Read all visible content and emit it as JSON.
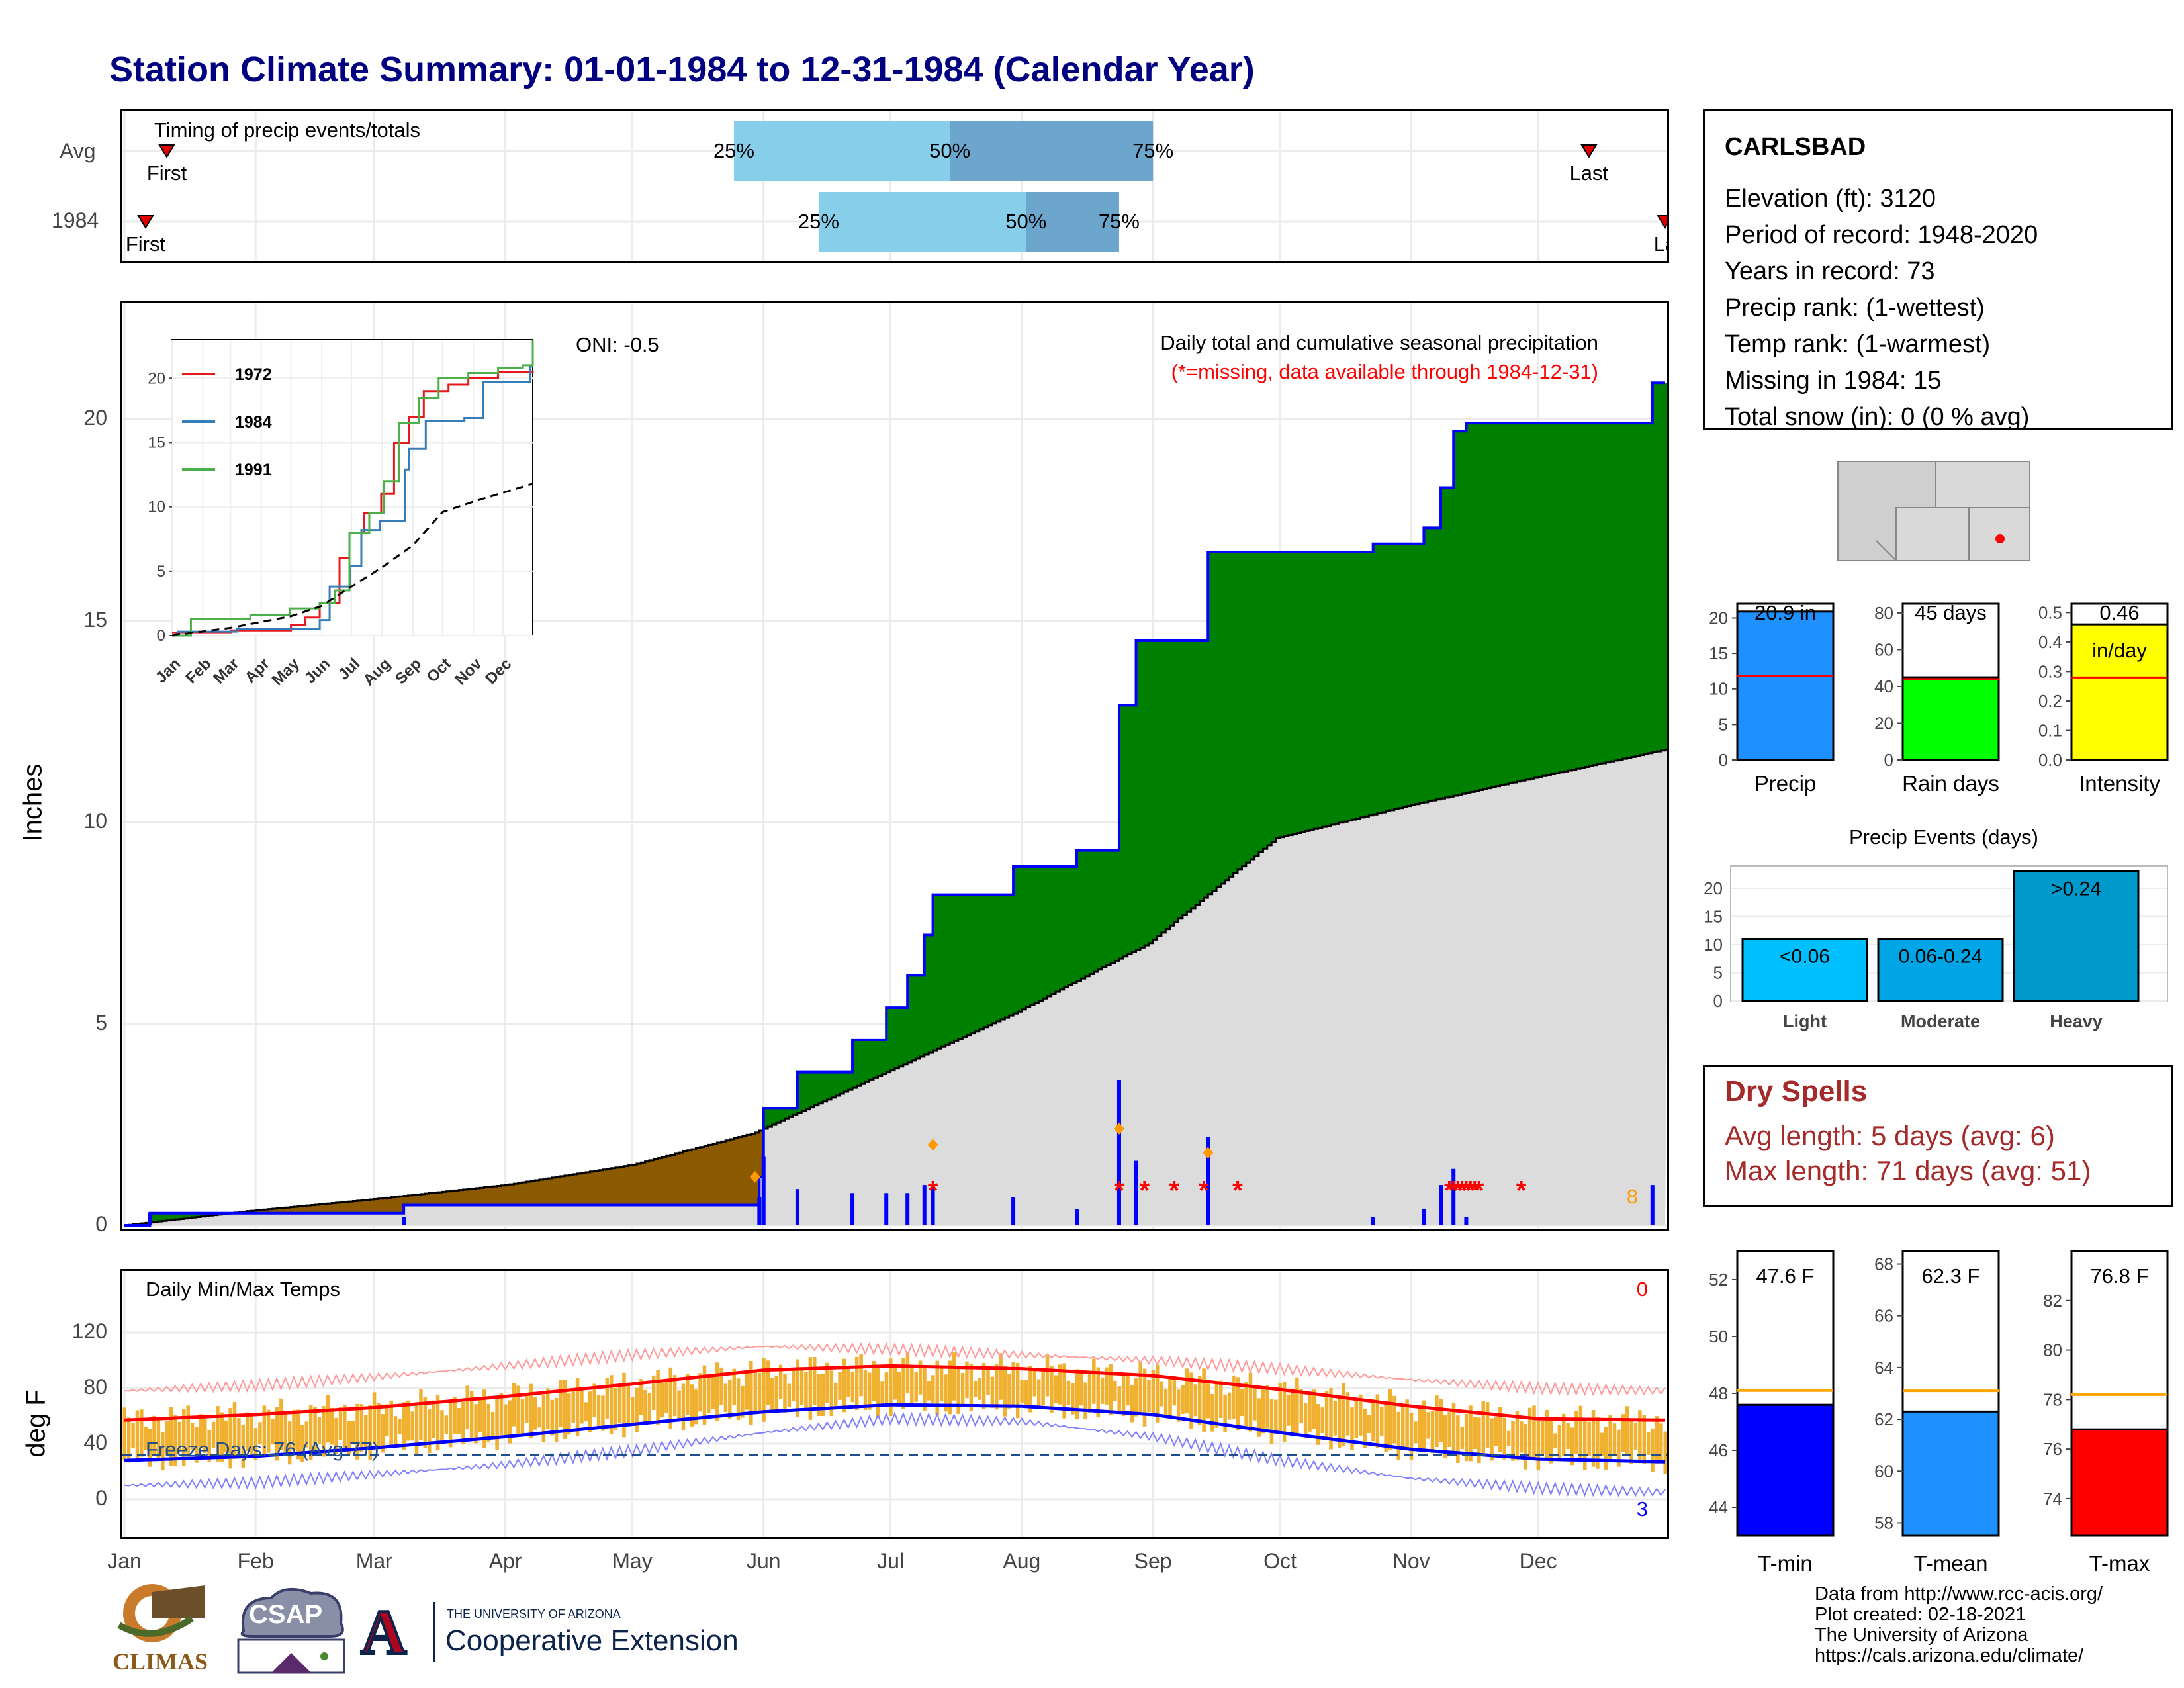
{
  "title": "Station Climate Summary: 01-01-1984 to 12-31-1984 (Calendar Year)",
  "timing": {
    "heading": "Timing of precip events/totals",
    "rows": [
      {
        "label": "Avg",
        "first_label": "First",
        "last_label": "Last",
        "q25_label": "25%",
        "q50_label": "50%",
        "q75_label": "75%",
        "first_day": 11,
        "last_day": 347,
        "q25_day": 145,
        "q50_day": 196,
        "q75_day": 244
      },
      {
        "label": "1984",
        "first_label": "First",
        "last_label": "La",
        "q25_label": "25%",
        "q50_label": "50%",
        "q75_label": "75%",
        "first_day": 6,
        "last_day": 365,
        "q25_day": 165,
        "q50_day": 214,
        "q75_day": 236
      }
    ]
  },
  "station": {
    "name": "CARLSBAD",
    "lines": [
      "Elevation (ft): 3120",
      "Period of record: 1948-2020",
      "Years in record: 73",
      "Precip rank:  (1-wettest)",
      "Temp rank:  (1-warmest)",
      "Missing in 1984: 15",
      "Total snow (in): 0 (0 % avg)"
    ]
  },
  "precip_panel": {
    "ylabel": "Inches",
    "oni": "ONI: -0.5",
    "subtitle": "Daily total and cumulative seasonal precipitation",
    "missing_note": "(*=missing, data available through 1984-12-31)",
    "corner_count": "8",
    "yticks": [
      "0",
      "5",
      "10",
      "15",
      "20"
    ]
  },
  "temp_panel": {
    "ylabel": "deg F",
    "label": "Daily Min/Max Temps",
    "freeze_text": "Freeze Days: 76 (Avg:77)",
    "hot_count": "0",
    "cold_count": "3",
    "yticks": [
      "0",
      "40",
      "80",
      "120"
    ]
  },
  "months": [
    "Jan",
    "Feb",
    "Mar",
    "Apr",
    "May",
    "Jun",
    "Jul",
    "Aug",
    "Sep",
    "Oct",
    "Nov",
    "Dec"
  ],
  "inset": {
    "legend": [
      "1972",
      "1984",
      "1991"
    ],
    "colors": [
      "#e41a1c",
      "#377eb8",
      "#4daf4a"
    ],
    "months": [
      "Jan",
      "Feb",
      "Mar",
      "Apr",
      "May",
      "Jun",
      "Jul",
      "Aug",
      "Sep",
      "Oct",
      "Nov",
      "Dec"
    ],
    "yticks": [
      "0",
      "5",
      "10",
      "15",
      "20"
    ]
  },
  "stat_bars": {
    "precip": {
      "label": "Precip",
      "value_text": "20.9 in",
      "yticks": [
        "0",
        "5",
        "10",
        "15",
        "20"
      ]
    },
    "rain_days": {
      "label": "Rain days",
      "value_text": "45 days",
      "yticks": [
        "0",
        "20",
        "40",
        "60",
        "80"
      ]
    },
    "intensity": {
      "label": "Intensity",
      "value_text": "0.46",
      "unit_text": "in/day",
      "yticks": [
        "0.0",
        "0.1",
        "0.2",
        "0.3",
        "0.4",
        "0.5"
      ]
    }
  },
  "events": {
    "title": "Precip Events (days)",
    "bars": [
      {
        "label": "Light",
        "inner": "<0.06",
        "value": 11
      },
      {
        "label": "Moderate",
        "inner": "0.06-0.24",
        "value": 11
      },
      {
        "label": "Heavy",
        "inner": ">0.24",
        "value": 23
      }
    ],
    "yticks": [
      "0",
      "5",
      "10",
      "15",
      "20"
    ]
  },
  "dry_spells": {
    "title": "Dry Spells",
    "avg_line": "Avg length: 5 days (avg: 6)",
    "max_line": "Max length: 71 days (avg: 51)"
  },
  "temp_bars": {
    "tmin": {
      "label": "T-min",
      "value_text": "47.6 F",
      "yticks": [
        "44",
        "46",
        "48",
        "50",
        "52"
      ]
    },
    "tmean": {
      "label": "T-mean",
      "value_text": "62.3 F",
      "yticks": [
        "58",
        "60",
        "62",
        "64",
        "66",
        "68"
      ]
    },
    "tmax": {
      "label": "T-max",
      "value_text": "76.8 F",
      "yticks": [
        "74",
        "76",
        "78",
        "80",
        "82"
      ]
    }
  },
  "credits": [
    "Data from http://www.rcc-acis.org/",
    "Plot created: 02-18-2021",
    "The University of Arizona",
    "https://cals.arizona.edu/climate/"
  ],
  "logos": {
    "climas": "CLIMAS",
    "csap": "CSAP",
    "ua_small": "THE UNIVERSITY OF ARIZONA",
    "ua_big": "Cooperative Extension",
    "ua_letter": "A"
  },
  "chart_data": [
    {
      "type": "area",
      "title": "Daily total and cumulative seasonal precipitation",
      "ylabel": "Inches",
      "ylim": [
        0,
        22
      ],
      "x_months": [
        "Jan",
        "Feb",
        "Mar",
        "Apr",
        "May",
        "Jun",
        "Jul",
        "Aug",
        "Sep",
        "Oct",
        "Nov",
        "Dec"
      ],
      "series": [
        {
          "name": "1984",
          "points": [
            [
              1,
              0.0
            ],
            [
              7,
              0.3
            ],
            [
              66,
              0.3
            ],
            [
              67,
              0.5
            ],
            [
              150,
              0.5
            ],
            [
              151,
              1.2
            ],
            [
              152,
              2.9
            ],
            [
              159,
              2.9
            ],
            [
              160,
              3.8
            ],
            [
              172,
              3.8
            ],
            [
              173,
              4.6
            ],
            [
              181,
              5.4
            ],
            [
              186,
              6.2
            ],
            [
              190,
              7.2
            ],
            [
              192,
              8.2
            ],
            [
              210,
              8.2
            ],
            [
              211,
              8.9
            ],
            [
              226,
              9.3
            ],
            [
              235,
              9.3
            ],
            [
              236,
              12.9
            ],
            [
              240,
              14.5
            ],
            [
              255,
              14.5
            ],
            [
              257,
              16.7
            ],
            [
              285,
              16.7
            ],
            [
              296,
              16.9
            ],
            [
              308,
              17.3
            ],
            [
              312,
              18.3
            ],
            [
              315,
              19.7
            ],
            [
              318,
              19.9
            ],
            [
              362,
              20.9
            ],
            [
              365,
              20.9
            ]
          ]
        },
        {
          "points": [
            [
              1,
              0.0
            ],
            [
              30,
              0.35
            ],
            [
              60,
              0.65
            ],
            [
              91,
              1.0
            ],
            [
              121,
              1.5
            ],
            [
              150,
              2.3
            ],
            [
              181,
              3.8
            ],
            [
              212,
              5.3
            ],
            [
              243,
              7.0
            ],
            [
              273,
              9.6
            ],
            [
              304,
              10.4
            ],
            [
              334,
              11.1
            ],
            [
              365,
              11.8
            ]
          ]
        }
      ],
      "missing_days": [
        192,
        236,
        242,
        249,
        256,
        264,
        314,
        315,
        316,
        317,
        318,
        319,
        320,
        321,
        331
      ],
      "daily_events": [
        {
          "day": 150,
          "value": 1.2
        },
        {
          "day": 192,
          "value": 2.0
        },
        {
          "day": 236,
          "value": 2.4
        },
        {
          "day": 257,
          "value": 1.8
        }
      ]
    },
    {
      "type": "line",
      "title": "Daily Min/Max Temps",
      "ylabel": "deg F",
      "ylim": [
        -20,
        120
      ],
      "x_months": [
        "Jan",
        "Feb",
        "Mar",
        "Apr",
        "May",
        "Jun",
        "Jul",
        "Aug",
        "Sep",
        "Oct",
        "Nov",
        "Dec"
      ],
      "freeze_line": 32,
      "series": [
        {
          "x": [
            1,
            32,
            60,
            91,
            121,
            152,
            182,
            213,
            244,
            274,
            305,
            335,
            365
          ],
          "y": [
            57,
            61,
            66,
            74,
            83,
            93,
            96,
            94,
            89,
            79,
            67,
            58,
            57
          ]
        },
        {
          "x": [
            1,
            32,
            60,
            91,
            121,
            152,
            182,
            213,
            244,
            274,
            305,
            335,
            365
          ],
          "y": [
            28,
            31,
            37,
            45,
            54,
            63,
            68,
            67,
            61,
            48,
            36,
            29,
            27
          ]
        },
        {
          "x": [
            1,
            32,
            60,
            91,
            121,
            152,
            182,
            213,
            244,
            274,
            305,
            335,
            365
          ],
          "y": [
            78,
            82,
            88,
            96,
            104,
            110,
            108,
            104,
            100,
            94,
            86,
            80,
            78
          ]
        },
        {
          "x": [
            1,
            32,
            60,
            91,
            121,
            152,
            182,
            213,
            244,
            274,
            305,
            335,
            365
          ],
          "y": [
            10,
            12,
            18,
            25,
            35,
            48,
            58,
            56,
            45,
            28,
            15,
            8,
            5
          ]
        }
      ]
    },
    {
      "type": "line",
      "ylim": [
        0,
        22
      ],
      "x_months": [
        "Jan",
        "Feb",
        "Mar",
        "Apr",
        "May",
        "Jun",
        "Jul",
        "Aug",
        "Sep",
        "Oct",
        "Nov",
        "Dec"
      ],
      "series": [
        {
          "name": "1972",
          "x": [
            1,
            60,
            121,
            135,
            150,
            170,
            180,
            195,
            212,
            225,
            240,
            255,
            280,
            300,
            330,
            365
          ],
          "y": [
            0.2,
            0.4,
            0.8,
            1.4,
            2.5,
            6.0,
            8.0,
            9.5,
            11.0,
            15.0,
            17.0,
            19.0,
            19.5,
            20.0,
            20.5,
            20.6
          ]
        },
        {
          "name": "1984",
          "x": [
            1,
            7,
            66,
            150,
            160,
            181,
            192,
            211,
            236,
            240,
            257,
            296,
            315,
            362,
            365
          ],
          "y": [
            0,
            0.3,
            0.5,
            1.2,
            3.8,
            5.4,
            8.2,
            8.9,
            12.9,
            14.5,
            16.7,
            16.9,
            19.7,
            20.9,
            20.9
          ]
        },
        {
          "name": "1991",
          "x": [
            1,
            20,
            80,
            120,
            150,
            165,
            180,
            200,
            215,
            230,
            250,
            270,
            300,
            330,
            355,
            365
          ],
          "y": [
            0,
            1.3,
            1.6,
            2.1,
            2.5,
            3.5,
            8.0,
            9.5,
            12.0,
            16.5,
            18.5,
            20.0,
            20.4,
            20.8,
            21.0,
            23.0
          ]
        },
        {
          "x": [
            1,
            60,
            121,
            152,
            182,
            213,
            244,
            274,
            305,
            335,
            365
          ],
          "y": [
            0,
            0.6,
            1.5,
            2.3,
            3.8,
            5.3,
            7.0,
            9.6,
            10.4,
            11.1,
            11.8
          ]
        }
      ]
    },
    {
      "type": "bar",
      "categories": [
        "Precip",
        "Rain days",
        "Intensity"
      ],
      "series": [
        {
          "values": [
            20.9,
            45,
            0.46
          ]
        },
        {
          "values": [
            11.8,
            44,
            0.28
          ]
        }
      ]
    },
    {
      "type": "bar",
      "title": "Precip Events (days)",
      "categories": [
        "Light",
        "Moderate",
        "Heavy"
      ],
      "values": [
        11,
        11,
        23
      ],
      "ylim": [
        0,
        24
      ]
    },
    {
      "type": "bar",
      "categories": [
        "T-min",
        "T-mean",
        "T-max"
      ],
      "series": [
        {
          "values": [
            47.6,
            62.3,
            76.8
          ]
        },
        {
          "values": [
            48.1,
            63.1,
            78.2
          ]
        }
      ]
    }
  ]
}
